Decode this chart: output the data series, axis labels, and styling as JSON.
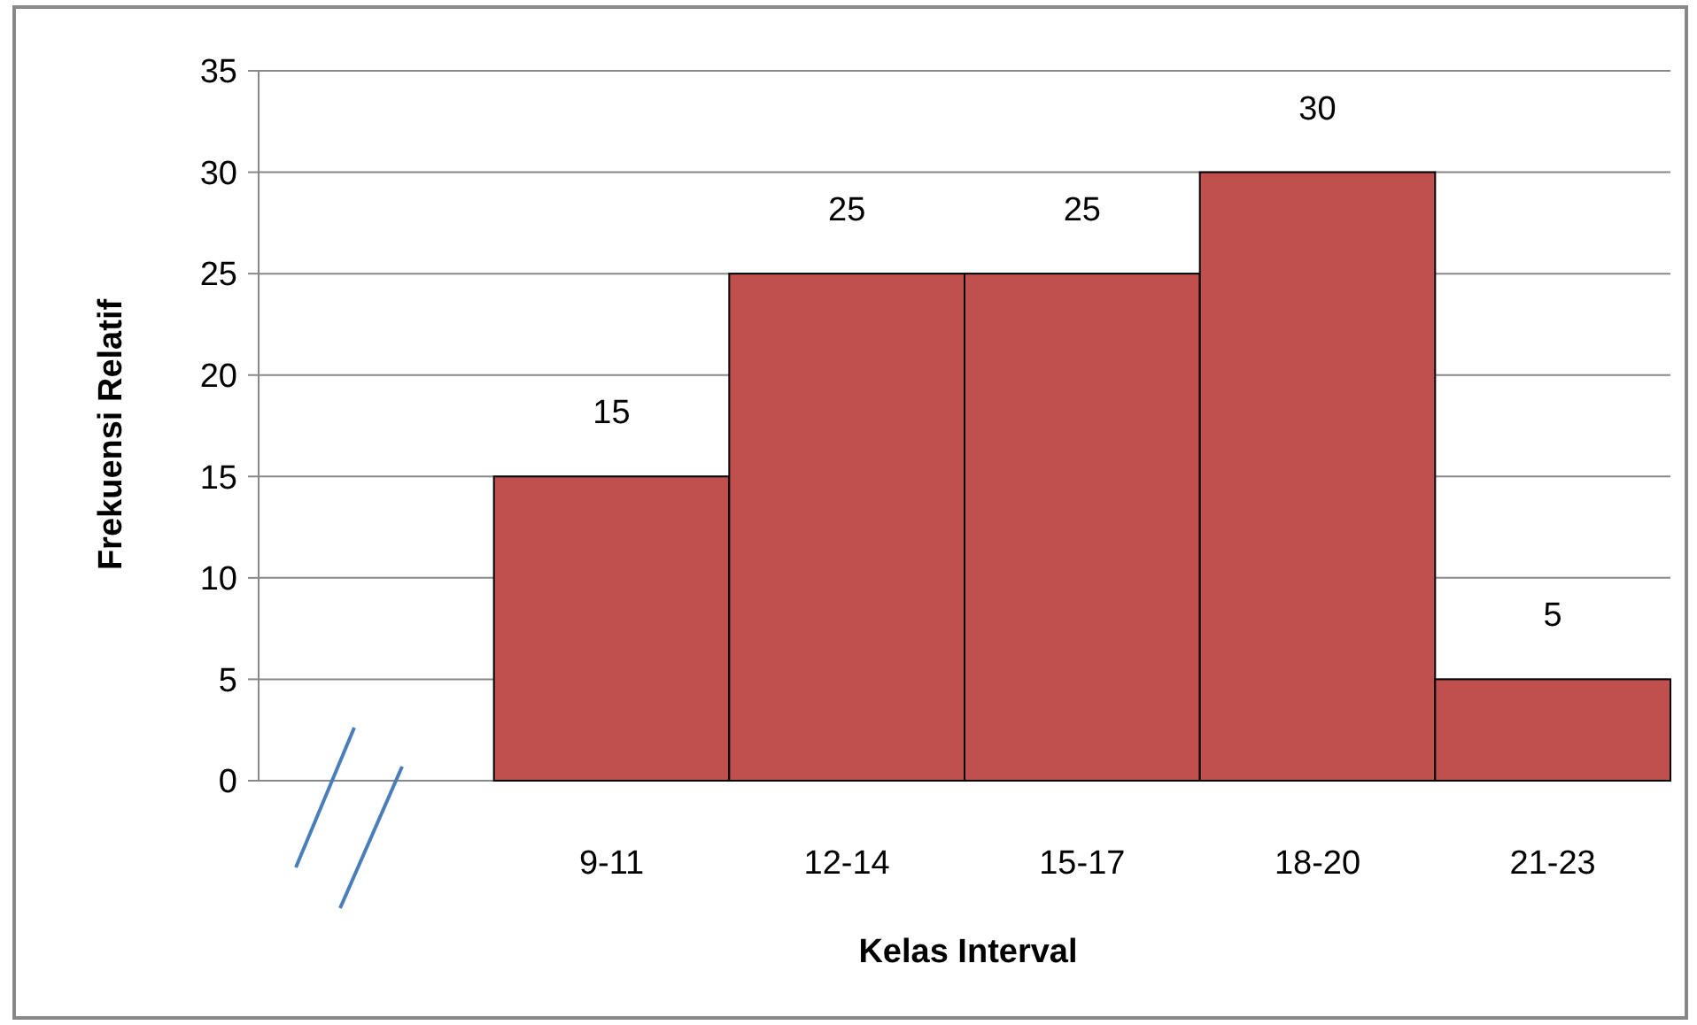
{
  "chart_data": {
    "type": "bar",
    "xlabel": "Kelas Interval",
    "ylabel": "Frekuensi Relatif",
    "categories": [
      null,
      "9-11",
      "12-14",
      "15-17",
      "18-20",
      "21-23"
    ],
    "values": [
      null,
      15,
      25,
      25,
      30,
      5
    ],
    "color": "#c0504d",
    "ylim": [
      0,
      35
    ],
    "yticks": [
      0,
      5,
      10,
      15,
      20,
      25,
      30,
      35
    ],
    "grid": "y",
    "data_labels": true
  }
}
